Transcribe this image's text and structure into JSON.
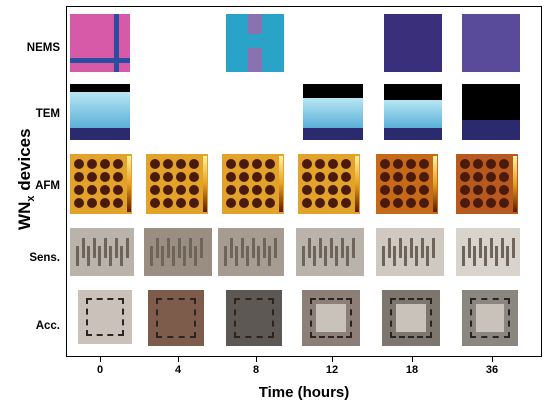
{
  "ylabel": {
    "text": "WN",
    "sub": "x",
    "rest": " devices"
  },
  "rows": [
    "NEMS",
    "TEM",
    "AFM",
    "Sens.",
    "Acc."
  ],
  "xlabel": "Time (hours)",
  "ticks": [
    "0",
    "4",
    "8",
    "12",
    "18",
    "36"
  ],
  "colors": {
    "frame": "#000000",
    "nems": "#d75aa8",
    "tem_layer": "#5ab0d8",
    "afm": "#e3a32a",
    "sens": "#b9b3ac",
    "acc": "#7a6e68"
  }
}
